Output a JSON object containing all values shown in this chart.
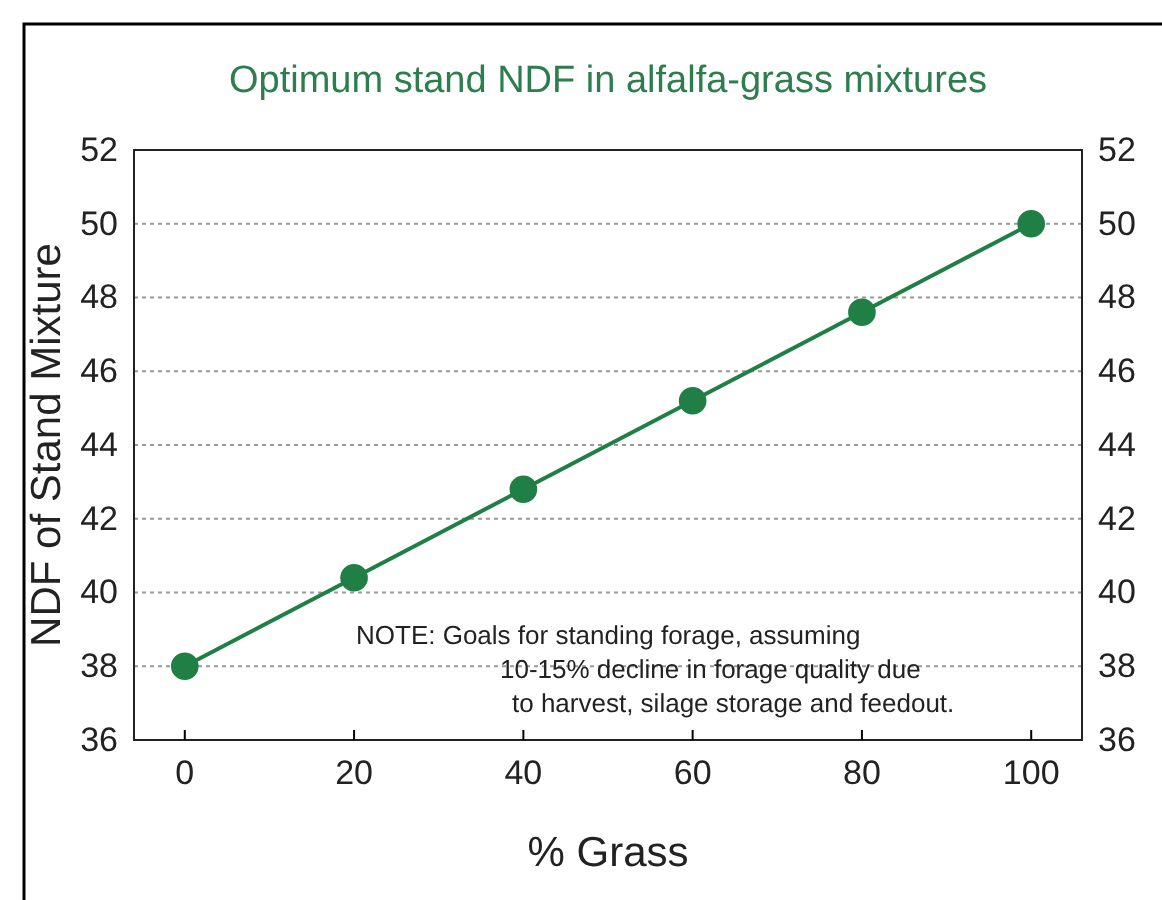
{
  "chart_data": {
    "type": "line",
    "title": "Optimum stand NDF in alfalfa-grass mixtures",
    "xlabel": "% Grass",
    "ylabel": "NDF of Stand Mixture",
    "x": [
      0,
      20,
      40,
      60,
      80,
      100
    ],
    "series": [
      {
        "color": "#1f7f45",
        "values": [
          38,
          40.4,
          42.8,
          45.2,
          47.6,
          50
        ]
      }
    ],
    "xlim": [
      -6,
      106
    ],
    "xticks": [
      0,
      20,
      40,
      60,
      80,
      100
    ],
    "ylim": [
      36,
      52
    ],
    "yticks": [
      36,
      38,
      40,
      42,
      44,
      46,
      48,
      50,
      52
    ],
    "y2lim": [
      36,
      52
    ],
    "y2ticks": [
      36,
      38,
      40,
      42,
      44,
      46,
      48,
      50,
      52
    ],
    "grid": "y",
    "marker": "circle",
    "line_style": "solid",
    "annotations": [
      "NOTE: Goals for standing forage, assuming\n10-15% decline in forage quality due\nto harvest, silage storage and feedout."
    ]
  }
}
